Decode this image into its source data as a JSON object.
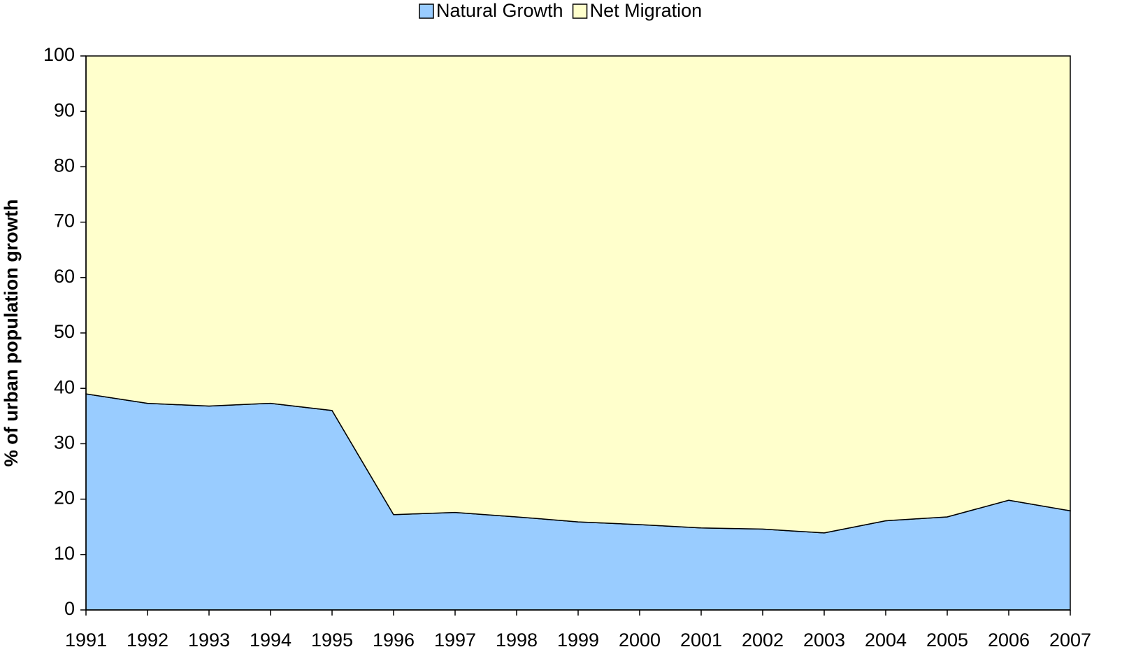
{
  "chart_data": {
    "type": "area",
    "stacked": true,
    "ylabel": "% of urban population growth",
    "categories": [
      "1991",
      "1992",
      "1993",
      "1994",
      "1995",
      "1996",
      "1997",
      "1998",
      "1999",
      "2000",
      "2001",
      "2002",
      "2003",
      "2004",
      "2005",
      "2006",
      "2007"
    ],
    "series": [
      {
        "name": "Natural Growth",
        "color": "#99ccff",
        "values": [
          39,
          37.3,
          36.8,
          37.3,
          36,
          17.2,
          17.6,
          16.8,
          15.9,
          15.4,
          14.8,
          14.6,
          13.9,
          16.1,
          16.8,
          19.8,
          17.9
        ]
      },
      {
        "name": "Net Migration",
        "color": "#ffffcc",
        "values": [
          61,
          62.7,
          63.2,
          62.7,
          64,
          82.8,
          82.4,
          83.2,
          84.1,
          84.6,
          85.2,
          85.4,
          86.1,
          83.9,
          83.2,
          80.2,
          82.1
        ]
      }
    ],
    "ylim": [
      0,
      100
    ],
    "yticks": [
      0,
      10,
      20,
      30,
      40,
      50,
      60,
      70,
      80,
      90,
      100
    ],
    "legend": "top",
    "grid": false
  }
}
